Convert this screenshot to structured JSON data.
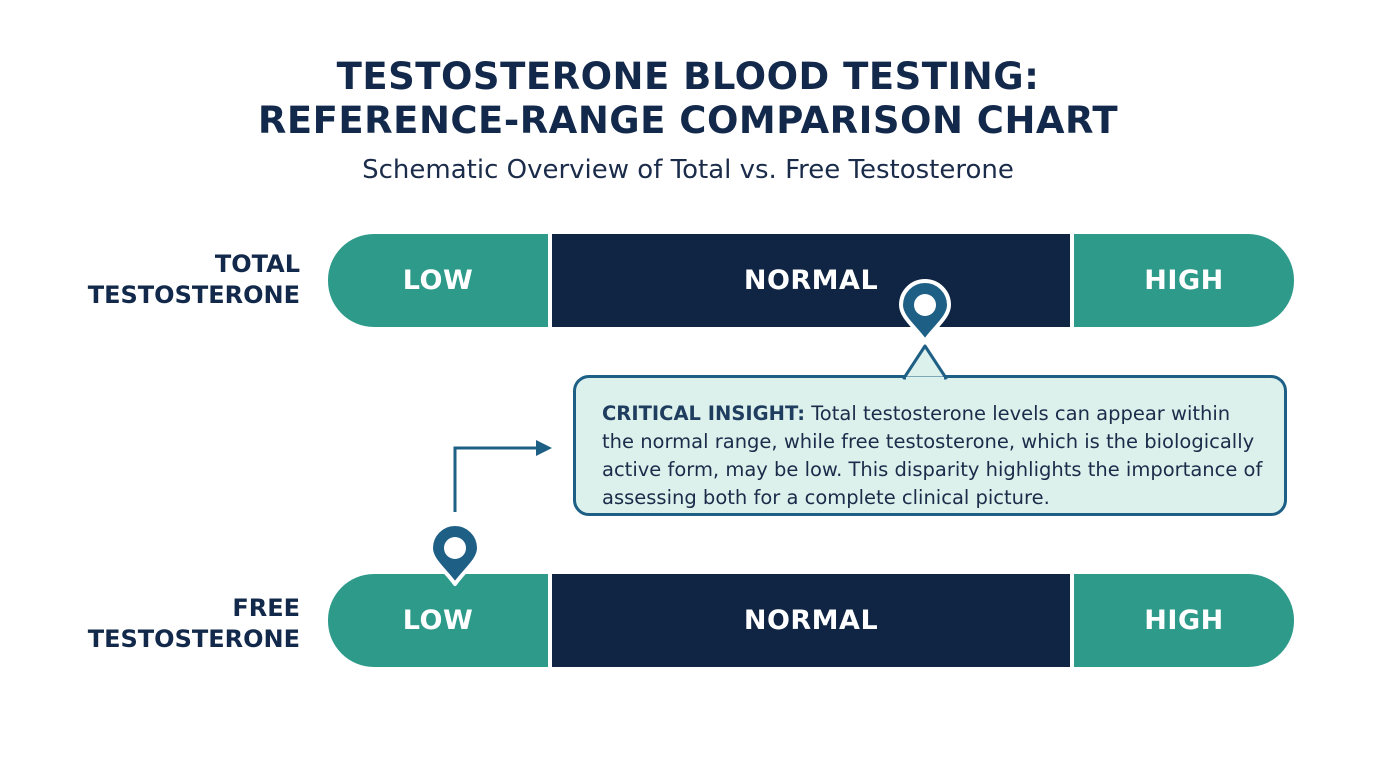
{
  "title_line1": "TESTOSTERONE BLOOD TESTING:",
  "title_line2": "REFERENCE-RANGE COMPARISON CHART",
  "subtitle": "Schematic Overview of Total vs. Free Testosterone",
  "rows": [
    {
      "label_line1": "TOTAL",
      "label_line2": "TESTOSTERONE",
      "segments": {
        "low": "LOW",
        "normal": "NORMAL",
        "high": "HIGH"
      }
    },
    {
      "label_line1": "FREE",
      "label_line2": "TESTOSTERONE",
      "segments": {
        "low": "LOW",
        "normal": "NORMAL",
        "high": "HIGH"
      }
    }
  ],
  "insight": {
    "heading": "CRITICAL INSIGHT:",
    "text": " Total testosterone levels can appear within the normal range, while free testosterone, which is the biologically active form, may be low. This disparity highlights the importance of assessing both for a complete clinical picture."
  },
  "colors": {
    "navy": "#0f2543",
    "teal": "#2e9a8a",
    "marker_blue": "#1e5f86",
    "callout_bg": "#dcf0ec"
  },
  "icons": [
    "location-pin-icon",
    "arrow-right-icon"
  ]
}
